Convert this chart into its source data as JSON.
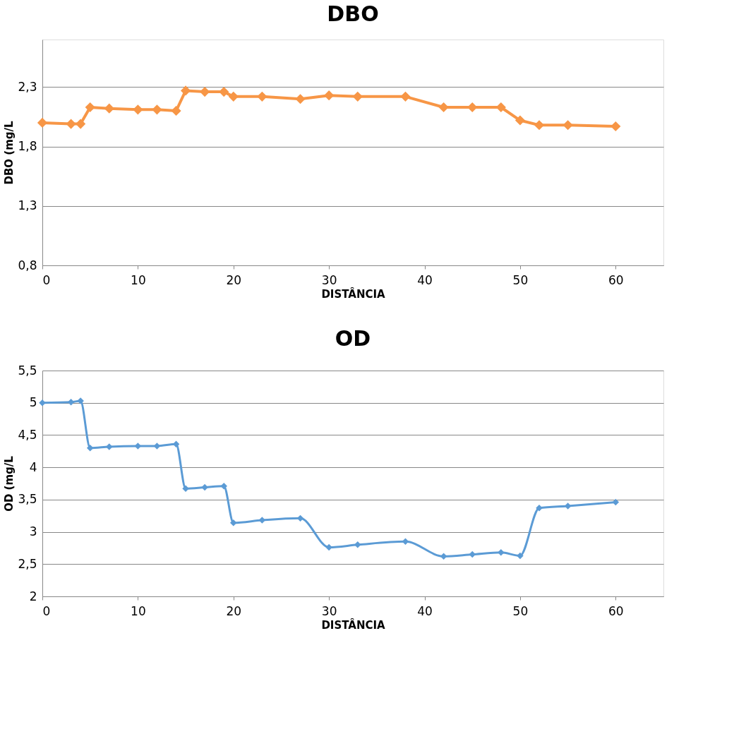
{
  "chart_data": [
    {
      "type": "line",
      "title": "DBO",
      "xlabel": "DISTÂNCIA",
      "ylabel": "DBO (mg/L",
      "x": [
        0,
        3,
        4,
        5,
        7,
        10,
        12,
        14,
        15,
        17,
        19,
        20,
        23,
        27,
        30,
        33,
        38,
        42,
        45,
        48,
        50,
        52,
        55,
        60
      ],
      "series": [
        {
          "color": "#f79646",
          "values": [
            2.0,
            1.99,
            1.99,
            2.13,
            2.12,
            2.11,
            2.11,
            2.1,
            2.27,
            2.26,
            2.26,
            2.22,
            2.22,
            2.2,
            2.23,
            2.22,
            2.22,
            2.13,
            2.13,
            2.13,
            2.02,
            1.98,
            1.98,
            1.97
          ]
        }
      ],
      "xlim": [
        0,
        65
      ],
      "xticks": [
        0,
        10,
        20,
        30,
        40,
        50,
        60
      ],
      "ylim": [
        0.8,
        2.7
      ],
      "yticks": [
        {
          "value": 0.8,
          "label": "0,8"
        },
        {
          "value": 1.3,
          "label": "1,3"
        },
        {
          "value": 1.8,
          "label": "1,8"
        },
        {
          "value": 2.3,
          "label": "2,3"
        }
      ],
      "grid": "y",
      "marker": "diamond",
      "line_style": "solid"
    },
    {
      "type": "line",
      "title": "OD",
      "xlabel": "DISTÂNCIA",
      "ylabel": "OD (mg/L",
      "x": [
        0,
        3,
        4,
        5,
        7,
        10,
        12,
        14,
        15,
        17,
        19,
        20,
        23,
        27,
        30,
        33,
        38,
        42,
        45,
        48,
        50,
        52,
        55,
        60
      ],
      "series": [
        {
          "color": "#5b9bd5",
          "values": [
            5.0,
            5.01,
            5.03,
            4.3,
            4.32,
            4.33,
            4.33,
            4.36,
            3.67,
            3.69,
            3.71,
            3.14,
            3.18,
            3.21,
            2.76,
            2.8,
            2.85,
            2.62,
            2.65,
            2.68,
            2.63,
            3.37,
            3.4,
            3.46
          ]
        }
      ],
      "xlim": [
        0,
        65
      ],
      "xticks": [
        0,
        10,
        20,
        30,
        40,
        50,
        60
      ],
      "ylim": [
        2,
        5.5
      ],
      "yticks": [
        2,
        {
          "value": 2.5,
          "label": "2,5"
        },
        3,
        {
          "value": 3.5,
          "label": "3,5"
        },
        4,
        {
          "value": 4.5,
          "label": "4,5"
        },
        5,
        {
          "value": 5.5,
          "label": "5,5"
        }
      ],
      "grid": "y",
      "marker": "diamond",
      "line_style": "solid"
    }
  ]
}
